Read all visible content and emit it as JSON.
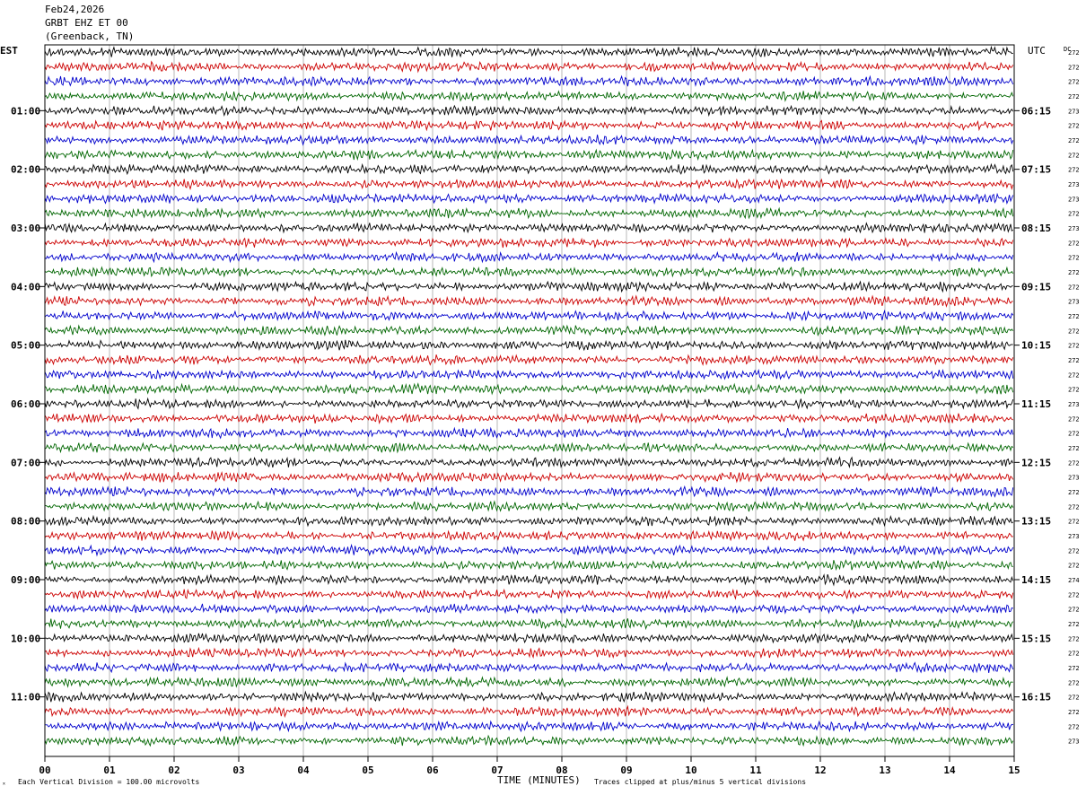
{
  "header": {
    "date": "Feb24,2026",
    "station": "GRBT EHZ ET 00",
    "location": "(Greenback, TN)"
  },
  "left_zone": "EST",
  "right_zone": "UTC",
  "dc_label": "DC",
  "footer": {
    "scale_note": "Each Vertical Division =  100.00 microvolts",
    "xlabel": "TIME (MINUTES)",
    "clip_note": "Traces clipped at plus/minus 5 vertical divisions",
    "corner_mark": "ˣ"
  },
  "chart_data": {
    "type": "line",
    "chart_kind": "helicorder",
    "x_ticks": [
      "00",
      "01",
      "02",
      "03",
      "04",
      "05",
      "06",
      "07",
      "08",
      "09",
      "10",
      "11",
      "12",
      "13",
      "14",
      "15"
    ],
    "xlim": [
      0,
      15
    ],
    "trace_colors": [
      "#000000",
      "#cc0000",
      "#0000cc",
      "#006600"
    ],
    "row_count": 48,
    "left_hour_labels": [
      "01:00",
      "02:00",
      "03:00",
      "04:00",
      "05:00",
      "06:00",
      "07:00",
      "08:00",
      "09:00",
      "10:00",
      "11:00"
    ],
    "right_hour_labels": [
      "06:15",
      "07:15",
      "08:15",
      "09:15",
      "10:15",
      "11:15",
      "12:15",
      "13:15",
      "14:15",
      "15:15",
      "16:15"
    ],
    "dc_values": [
      "272",
      "272",
      "272",
      "272",
      "273",
      "272",
      "272",
      "272",
      "272",
      "273",
      "273",
      "272",
      "273",
      "272",
      "272",
      "272",
      "272",
      "273",
      "272",
      "272",
      "272",
      "272",
      "272",
      "272",
      "273",
      "272",
      "272",
      "272",
      "272",
      "273",
      "272",
      "272",
      "272",
      "273",
      "272",
      "272",
      "274",
      "272",
      "272",
      "272",
      "272",
      "272",
      "272",
      "272",
      "272",
      "272",
      "272",
      "273"
    ]
  }
}
